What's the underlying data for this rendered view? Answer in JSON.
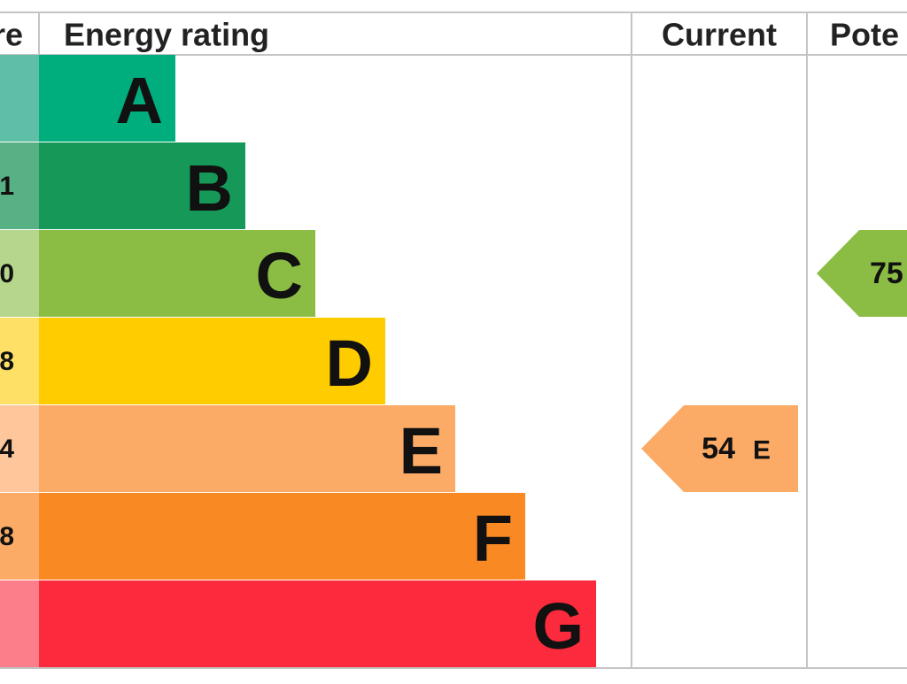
{
  "header": {
    "score": "re",
    "rating": "Energy rating",
    "current": "Current",
    "potential": "Pote"
  },
  "bands": [
    {
      "letter": "A"
    },
    {
      "letter": "B",
      "score": "1"
    },
    {
      "letter": "C",
      "score": "0"
    },
    {
      "letter": "D",
      "score": "8"
    },
    {
      "letter": "E",
      "score": "4"
    },
    {
      "letter": "F",
      "score": "8"
    },
    {
      "letter": "G"
    }
  ],
  "current": {
    "value": 54,
    "letter": "E"
  },
  "potential": {
    "value": 75
  }
}
